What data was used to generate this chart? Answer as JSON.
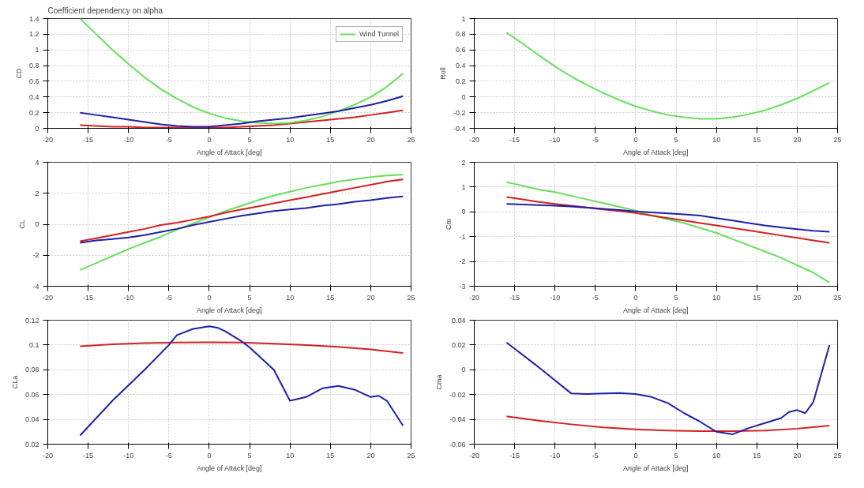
{
  "chart_data": [
    {
      "type": "line",
      "title": "Coefficient dependency on alpha",
      "xlabel": "Angle of Attack [deg]",
      "ylabel": "CD",
      "xlim": [
        -20,
        25
      ],
      "xticks": [
        -20,
        -15,
        -10,
        -5,
        0,
        5,
        10,
        15,
        20,
        25
      ],
      "ylim": [
        0,
        1.4
      ],
      "yticks": [
        0,
        0.2,
        0.4,
        0.6,
        0.8,
        1,
        1.2,
        1.4
      ],
      "grid": true,
      "legend": "top right",
      "x": [
        -16,
        -14,
        -12,
        -10,
        -8,
        -6,
        -4,
        -2,
        0,
        2,
        4,
        6,
        8,
        10,
        12,
        14,
        16,
        18,
        20,
        22,
        24
      ],
      "series": [
        {
          "color": "#d42020",
          "values": [
            0.04,
            0.03,
            0.02,
            0.02,
            0.01,
            0.01,
            0.01,
            0.01,
            0.01,
            0.01,
            0.02,
            0.03,
            0.04,
            0.06,
            0.08,
            0.1,
            0.12,
            0.14,
            0.17,
            0.2,
            0.23
          ]
        },
        {
          "name": "Wind Tunnel",
          "color": "#66e05a",
          "values": [
            1.4,
            1.2,
            1.0,
            0.82,
            0.65,
            0.5,
            0.38,
            0.27,
            0.19,
            0.13,
            0.09,
            0.07,
            0.06,
            0.07,
            0.1,
            0.15,
            0.22,
            0.3,
            0.4,
            0.53,
            0.7
          ]
        },
        {
          "color": "#2020a8",
          "values": [
            0.2,
            0.17,
            0.14,
            0.11,
            0.08,
            0.05,
            0.03,
            0.02,
            0.02,
            0.04,
            0.06,
            0.09,
            0.11,
            0.13,
            0.16,
            0.19,
            0.22,
            0.26,
            0.3,
            0.35,
            0.41
          ]
        }
      ]
    },
    {
      "type": "line",
      "xlabel": "Angle of Attack [deg]",
      "ylabel": "Roll",
      "xlim": [
        -20,
        25
      ],
      "xticks": [
        -20,
        -15,
        -10,
        -5,
        0,
        5,
        10,
        15,
        20,
        25
      ],
      "ylim": [
        -0.4,
        1
      ],
      "yticks": [
        -0.4,
        -0.2,
        0,
        0.2,
        0.4,
        0.6,
        0.8,
        1
      ],
      "grid": true,
      "x": [
        -16,
        -14,
        -12,
        -10,
        -8,
        -6,
        -4,
        -2,
        0,
        2,
        4,
        6,
        8,
        10,
        12,
        14,
        16,
        18,
        20,
        22,
        24
      ],
      "series": [
        {
          "color": "#66e05a",
          "values": [
            0.82,
            0.68,
            0.53,
            0.39,
            0.26,
            0.15,
            0.05,
            -0.04,
            -0.12,
            -0.18,
            -0.23,
            -0.26,
            -0.28,
            -0.28,
            -0.26,
            -0.22,
            -0.17,
            -0.1,
            -0.02,
            0.08,
            0.18
          ]
        }
      ]
    },
    {
      "type": "line",
      "xlabel": "Angle of Attack [deg]",
      "ylabel": "CL",
      "xlim": [
        -20,
        25
      ],
      "xticks": [
        -20,
        -15,
        -10,
        -5,
        0,
        5,
        10,
        15,
        20,
        25
      ],
      "ylim": [
        -4,
        4
      ],
      "yticks": [
        -4,
        -2,
        0,
        2,
        4
      ],
      "grid": true,
      "x": [
        -16,
        -14,
        -12,
        -10,
        -8,
        -6,
        -4,
        -2,
        0,
        2,
        4,
        6,
        8,
        10,
        12,
        14,
        16,
        18,
        20,
        22,
        24
      ],
      "series": [
        {
          "color": "#66e05a",
          "values": [
            -2.95,
            -2.5,
            -2.05,
            -1.6,
            -1.2,
            -0.8,
            -0.35,
            0.05,
            0.45,
            0.85,
            1.2,
            1.55,
            1.85,
            2.1,
            2.35,
            2.55,
            2.75,
            2.9,
            3.05,
            3.15,
            3.2
          ]
        },
        {
          "color": "#d42020",
          "values": [
            -1.1,
            -0.9,
            -0.7,
            -0.5,
            -0.3,
            -0.05,
            0.1,
            0.3,
            0.5,
            0.75,
            0.95,
            1.15,
            1.35,
            1.55,
            1.75,
            1.95,
            2.15,
            2.35,
            2.55,
            2.75,
            2.9
          ]
        },
        {
          "color": "#2020a8",
          "values": [
            -1.2,
            -1.05,
            -0.95,
            -0.85,
            -0.7,
            -0.5,
            -0.3,
            -0.05,
            0.15,
            0.35,
            0.55,
            0.7,
            0.85,
            0.95,
            1.05,
            1.2,
            1.3,
            1.45,
            1.55,
            1.7,
            1.8
          ]
        }
      ]
    },
    {
      "type": "line",
      "xlabel": "Angle of Attack [deg]",
      "ylabel": "Cm",
      "xlim": [
        -20,
        25
      ],
      "xticks": [
        -20,
        -15,
        -10,
        -5,
        0,
        5,
        10,
        15,
        20,
        25
      ],
      "ylim": [
        -3,
        2
      ],
      "yticks": [
        -3,
        -2,
        -1,
        0,
        1,
        2
      ],
      "grid": true,
      "x": [
        -16,
        -14,
        -12,
        -10,
        -8,
        -6,
        -4,
        -2,
        0,
        2,
        4,
        6,
        8,
        10,
        12,
        14,
        16,
        18,
        20,
        22,
        24
      ],
      "series": [
        {
          "color": "#66e05a",
          "values": [
            1.2,
            1.05,
            0.9,
            0.8,
            0.65,
            0.5,
            0.35,
            0.2,
            0.05,
            -0.15,
            -0.3,
            -0.45,
            -0.65,
            -0.85,
            -1.1,
            -1.35,
            -1.6,
            -1.85,
            -2.15,
            -2.45,
            -2.85
          ]
        },
        {
          "color": "#d42020",
          "values": [
            0.6,
            0.5,
            0.4,
            0.32,
            0.25,
            0.18,
            0.1,
            0.03,
            -0.05,
            -0.15,
            -0.25,
            -0.35,
            -0.45,
            -0.55,
            -0.65,
            -0.75,
            -0.85,
            -0.95,
            -1.05,
            -1.15,
            -1.25
          ]
        },
        {
          "color": "#2020a8",
          "values": [
            0.32,
            0.3,
            0.27,
            0.25,
            0.22,
            0.17,
            0.12,
            0.07,
            0.02,
            -0.02,
            -0.06,
            -0.1,
            -0.15,
            -0.25,
            -0.35,
            -0.45,
            -0.55,
            -0.63,
            -0.7,
            -0.76,
            -0.8
          ]
        }
      ]
    },
    {
      "type": "line",
      "xlabel": "Angle of Attack [deg]",
      "ylabel": "CLa",
      "xlim": [
        -20,
        25
      ],
      "xticks": [
        -20,
        -15,
        -10,
        -5,
        0,
        5,
        10,
        15,
        20,
        25
      ],
      "ylim": [
        0.02,
        0.12
      ],
      "yticks": [
        0.02,
        0.04,
        0.06,
        0.08,
        0.1,
        0.12
      ],
      "grid": true,
      "series": [
        {
          "color": "#d42020",
          "x": [
            -16,
            -12,
            -8,
            -4,
            0,
            4,
            8,
            12,
            16,
            20,
            24
          ],
          "values": [
            0.099,
            0.1005,
            0.1015,
            0.102,
            0.1022,
            0.102,
            0.101,
            0.1,
            0.0985,
            0.0965,
            0.0935
          ]
        },
        {
          "color": "#2020a8",
          "x": [
            -16,
            -12,
            -8,
            -5,
            -4,
            -2,
            0,
            1,
            2,
            4,
            5,
            8,
            10,
            12,
            14,
            16,
            18,
            20,
            21,
            22,
            24
          ],
          "values": [
            0.027,
            0.055,
            0.08,
            0.1,
            0.108,
            0.113,
            0.115,
            0.114,
            0.111,
            0.103,
            0.098,
            0.08,
            0.055,
            0.058,
            0.065,
            0.067,
            0.064,
            0.058,
            0.059,
            0.055,
            0.035
          ]
        }
      ]
    },
    {
      "type": "line",
      "xlabel": "Angle of Attack [deg]",
      "ylabel": "Cma",
      "xlim": [
        -20,
        25
      ],
      "xticks": [
        -20,
        -15,
        -10,
        -5,
        0,
        5,
        10,
        15,
        20,
        25
      ],
      "ylim": [
        -0.06,
        0.04
      ],
      "yticks": [
        -0.06,
        -0.04,
        -0.02,
        0,
        0.02,
        0.04
      ],
      "grid": true,
      "series": [
        {
          "color": "#d42020",
          "x": [
            -16,
            -12,
            -8,
            -4,
            0,
            4,
            8,
            12,
            16,
            20,
            24
          ],
          "values": [
            -0.0375,
            -0.041,
            -0.044,
            -0.0465,
            -0.048,
            -0.049,
            -0.0495,
            -0.0495,
            -0.049,
            -0.0475,
            -0.045
          ]
        },
        {
          "color": "#2020a8",
          "x": [
            -16,
            -12,
            -8,
            -6,
            -4,
            -2,
            0,
            2,
            4,
            6,
            8,
            10,
            12,
            14,
            16,
            18,
            19,
            20,
            21,
            22,
            24
          ],
          "values": [
            0.022,
            0.002,
            -0.019,
            -0.0195,
            -0.019,
            -0.0188,
            -0.0195,
            -0.022,
            -0.027,
            -0.035,
            -0.042,
            -0.05,
            -0.052,
            -0.047,
            -0.043,
            -0.039,
            -0.034,
            -0.0325,
            -0.035,
            -0.026,
            0.02
          ]
        }
      ]
    }
  ]
}
